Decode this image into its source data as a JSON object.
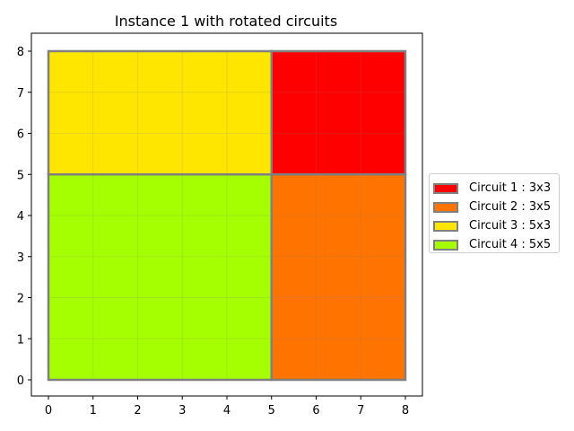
{
  "chart_data": {
    "type": "rectangles",
    "title": "Instance 1 with rotated circuits",
    "xlabel": "",
    "ylabel": "",
    "xlim": [
      0,
      8
    ],
    "ylim": [
      0,
      8
    ],
    "xticks": [
      0,
      1,
      2,
      3,
      4,
      5,
      6,
      7,
      8
    ],
    "yticks": [
      0,
      1,
      2,
      3,
      4,
      5,
      6,
      7,
      8
    ],
    "grid": true,
    "legend_position": "outside-right",
    "edge_color": "#808080",
    "series": [
      {
        "name": "Circuit 1 : 3x3",
        "x": 5,
        "y": 5,
        "width": 3,
        "height": 3,
        "color": "#ff0000"
      },
      {
        "name": "Circuit 2 : 3x5",
        "x": 5,
        "y": 0,
        "width": 3,
        "height": 5,
        "color": "#ff7300"
      },
      {
        "name": "Circuit 3 : 5x3",
        "x": 0,
        "y": 5,
        "width": 5,
        "height": 3,
        "color": "#ffe600"
      },
      {
        "name": "Circuit 4 : 5x5",
        "x": 0,
        "y": 0,
        "width": 5,
        "height": 5,
        "color": "#a6ff00"
      }
    ]
  }
}
